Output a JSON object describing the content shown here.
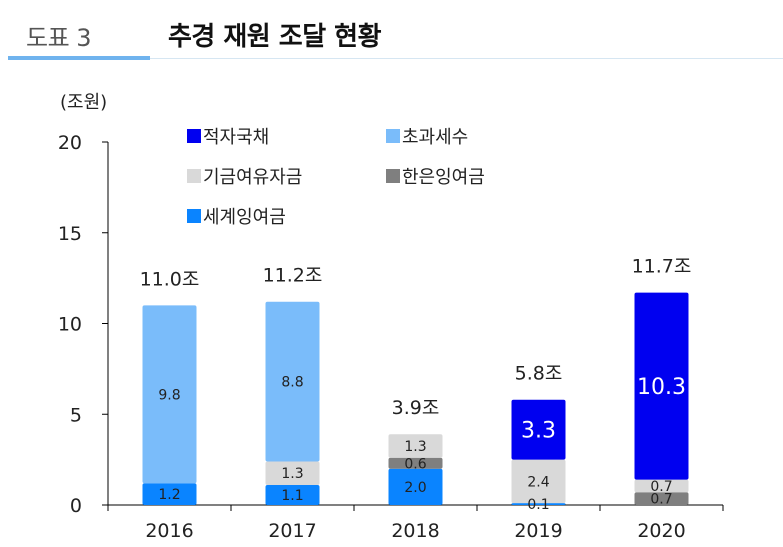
{
  "header": {
    "figure_label": "도표 3",
    "title": "추경 재원 조달 현황"
  },
  "chart_data": {
    "type": "bar",
    "stacked": true,
    "title": "추경 재원 조달 현황",
    "ylabel": "(조원)",
    "xlabel": "",
    "ylim": [
      0,
      20
    ],
    "yticks": [
      0,
      5,
      10,
      15,
      20
    ],
    "categories": [
      "2016",
      "2017",
      "2018",
      "2019",
      "2020"
    ],
    "series": [
      {
        "name": "세계잉여금",
        "color": "#0a84ff",
        "values": [
          1.2,
          1.1,
          2.0,
          0.1,
          0
        ],
        "labels": [
          "1.2",
          "1.1",
          "2.0",
          "0.1",
          ""
        ]
      },
      {
        "name": "한은잉여금",
        "color": "#7f7f7f",
        "values": [
          0,
          0,
          0.6,
          0,
          0.7
        ],
        "labels": [
          "",
          "",
          "0.6",
          "",
          "0.7"
        ]
      },
      {
        "name": "기금여유자금",
        "color": "#d9d9d9",
        "values": [
          0,
          1.3,
          1.3,
          2.4,
          0.7
        ],
        "labels": [
          "",
          "1.3",
          "1.3",
          "2.4",
          "0.7"
        ]
      },
      {
        "name": "초과세수",
        "color": "#7abcfa",
        "values": [
          9.8,
          8.8,
          0,
          0,
          0
        ],
        "labels": [
          "9.8",
          "8.8",
          "",
          "",
          ""
        ]
      },
      {
        "name": "적자국채",
        "color": "#0000f0",
        "values": [
          0,
          0,
          0,
          3.3,
          10.3
        ],
        "labels": [
          "",
          "",
          "",
          "3.3",
          "10.3"
        ]
      }
    ],
    "totals": [
      11.0,
      11.2,
      3.9,
      5.8,
      11.7
    ],
    "total_labels": [
      "11.0조",
      "11.2조",
      "3.9조",
      "5.8조",
      "11.7조"
    ],
    "legend": {
      "placement": "top",
      "entries": [
        "적자국채",
        "초과세수",
        "기금여유자금",
        "한은잉여금",
        "세계잉여금"
      ]
    },
    "grid": false
  }
}
